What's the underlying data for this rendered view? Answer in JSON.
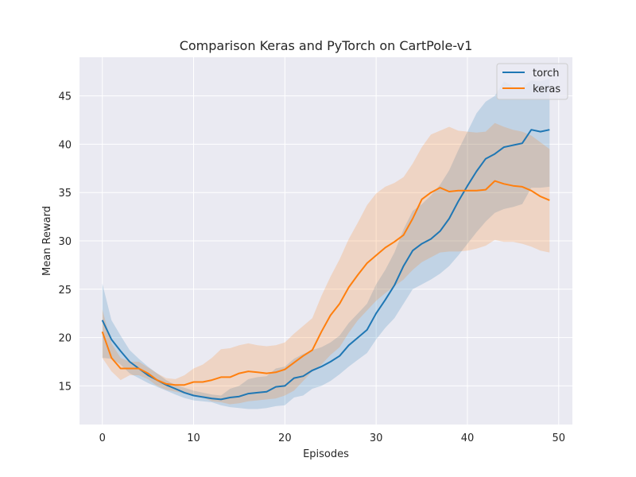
{
  "chart_data": {
    "type": "line",
    "title": "Comparison Keras and PyTorch on CartPole-v1",
    "xlabel": "Episodes",
    "ylabel": "Mean Reward",
    "xlim": [
      -2.5,
      51.5
    ],
    "ylim": [
      11,
      49
    ],
    "xticks": [
      0,
      10,
      20,
      30,
      40,
      50
    ],
    "yticks": [
      15,
      20,
      25,
      30,
      35,
      40,
      45
    ],
    "grid": true,
    "legend_position": "upper right",
    "x": [
      0,
      1,
      2,
      3,
      4,
      5,
      6,
      7,
      8,
      9,
      10,
      11,
      12,
      13,
      14,
      15,
      16,
      17,
      18,
      19,
      20,
      21,
      22,
      23,
      24,
      25,
      26,
      27,
      28,
      29,
      30,
      31,
      32,
      33,
      34,
      35,
      36,
      37,
      38,
      39,
      40,
      41,
      42,
      43,
      44,
      45,
      46,
      47,
      48,
      49
    ],
    "series": [
      {
        "name": "torch",
        "color": "#1f77b4",
        "values": [
          21.8,
          19.8,
          18.6,
          17.5,
          16.8,
          16.1,
          15.6,
          15.1,
          14.7,
          14.3,
          14.0,
          13.85,
          13.7,
          13.6,
          13.8,
          13.9,
          14.2,
          14.3,
          14.4,
          14.9,
          15.0,
          15.8,
          16.0,
          16.6,
          17.0,
          17.5,
          18.1,
          19.2,
          20.0,
          20.8,
          22.5,
          23.9,
          25.4,
          27.4,
          29.0,
          29.7,
          30.2,
          31.0,
          32.3,
          34.1,
          35.7,
          37.2,
          38.5,
          39.0,
          39.7,
          39.9,
          40.1,
          41.5,
          41.3,
          41.5
        ],
        "lower": [
          17.9,
          17.8,
          17.2,
          16.3,
          15.8,
          15.3,
          14.9,
          14.5,
          14.1,
          13.75,
          13.5,
          13.4,
          13.3,
          13.0,
          12.8,
          12.7,
          12.6,
          12.6,
          12.7,
          12.9,
          13.0,
          13.8,
          14.0,
          14.7,
          15.0,
          15.5,
          16.2,
          17.0,
          17.7,
          18.4,
          19.8,
          21.0,
          22.0,
          23.5,
          25.0,
          25.5,
          26.0,
          26.6,
          27.4,
          28.5,
          29.7,
          30.9,
          32.0,
          32.9,
          33.3,
          33.5,
          33.8,
          35.5,
          35.5,
          35.6
        ],
        "upper": [
          25.6,
          21.8,
          20.2,
          18.7,
          17.8,
          17.0,
          16.3,
          15.6,
          15.1,
          14.8,
          14.5,
          14.3,
          14.1,
          14.0,
          14.7,
          15.0,
          15.7,
          15.9,
          16.0,
          16.8,
          17.0,
          17.8,
          18.3,
          18.7,
          19.0,
          19.5,
          20.2,
          21.5,
          22.5,
          23.5,
          25.5,
          27.0,
          28.8,
          31.2,
          33.1,
          33.8,
          34.7,
          35.8,
          37.3,
          39.4,
          41.3,
          43.2,
          44.4,
          45.0,
          46.5,
          46.0,
          45.9,
          46.6,
          46.5,
          46.8
        ]
      },
      {
        "name": "keras",
        "color": "#ff7f0e",
        "values": [
          20.6,
          17.9,
          16.8,
          16.8,
          16.8,
          16.3,
          15.6,
          15.2,
          15.1,
          15.1,
          15.4,
          15.4,
          15.6,
          15.9,
          15.9,
          16.3,
          16.5,
          16.4,
          16.3,
          16.4,
          16.7,
          17.4,
          18.1,
          18.7,
          20.6,
          22.3,
          23.5,
          25.2,
          26.5,
          27.7,
          28.5,
          29.3,
          29.9,
          30.6,
          32.3,
          34.3,
          35.0,
          35.5,
          35.1,
          35.2,
          35.2,
          35.2,
          35.3,
          36.2,
          35.9,
          35.7,
          35.6,
          35.2,
          34.6,
          34.2
        ],
        "lower": [
          17.9,
          16.5,
          15.6,
          16.1,
          16.1,
          15.7,
          15.0,
          14.6,
          14.4,
          14.2,
          14.0,
          13.8,
          13.4,
          13.3,
          13.1,
          13.2,
          13.4,
          13.5,
          13.6,
          13.7,
          14.0,
          14.5,
          15.5,
          16.5,
          17.2,
          18.2,
          19.0,
          20.5,
          21.8,
          22.8,
          23.8,
          24.6,
          25.3,
          26.0,
          27.0,
          27.8,
          28.3,
          28.8,
          28.9,
          28.9,
          29.0,
          29.2,
          29.5,
          30.1,
          29.9,
          29.9,
          29.7,
          29.4,
          29.0,
          28.8
        ],
        "upper": [
          22.9,
          19.4,
          17.9,
          17.5,
          17.5,
          16.9,
          16.3,
          15.8,
          15.7,
          16.1,
          16.8,
          17.2,
          17.9,
          18.8,
          18.9,
          19.2,
          19.4,
          19.2,
          19.1,
          19.2,
          19.5,
          20.4,
          21.2,
          22.0,
          24.3,
          26.3,
          28.1,
          30.2,
          31.9,
          33.7,
          34.9,
          35.6,
          36.0,
          36.6,
          38.0,
          39.7,
          41.0,
          41.4,
          41.8,
          41.4,
          41.3,
          41.2,
          41.3,
          42.2,
          41.8,
          41.5,
          41.3,
          40.9,
          40.2,
          39.5
        ]
      }
    ]
  }
}
